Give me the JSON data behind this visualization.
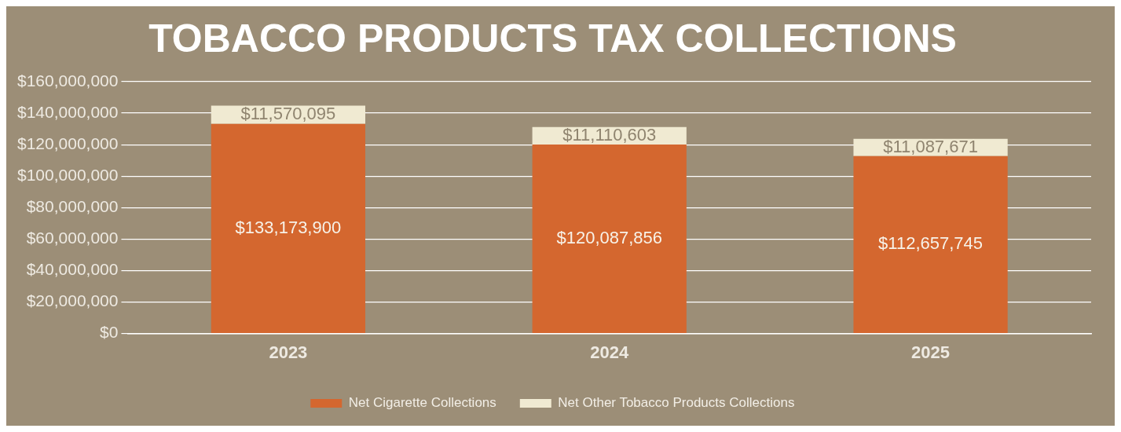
{
  "chart_data": {
    "type": "bar",
    "title": "TOBACCO PRODUCTS TAX COLLECTIONS",
    "categories": [
      "2023",
      "2024",
      "2025"
    ],
    "stacked": true,
    "grid": "y",
    "legend": "bottom",
    "ylim": [
      0,
      160000000
    ],
    "yticks": [
      {
        "value": 0,
        "label": "$0"
      },
      {
        "value": 20000000,
        "label": "$20,000,000"
      },
      {
        "value": 40000000,
        "label": "$40,000,000"
      },
      {
        "value": 60000000,
        "label": "$60,000,000"
      },
      {
        "value": 80000000,
        "label": "$80,000,000"
      },
      {
        "value": 100000000,
        "label": "$100,000,000"
      },
      {
        "value": 120000000,
        "label": "$120,000,000"
      },
      {
        "value": 140000000,
        "label": "$140,000,000"
      },
      {
        "value": 160000000,
        "label": "$160,000,000"
      }
    ],
    "series": [
      {
        "name": "Net Cigarette Collections",
        "color": "#d4672f",
        "values": [
          133173900,
          120087856,
          112657745
        ],
        "value_labels": [
          "$133,173,900",
          "$120,087,856",
          "$112,657,745"
        ]
      },
      {
        "name": "Net Other Tobacco Products Collections",
        "color": "#f0ead2",
        "values": [
          11570095,
          11110603,
          11087671
        ],
        "value_labels": [
          "$11,570,095",
          "$11,110,603",
          "$11,087,671"
        ]
      }
    ]
  }
}
